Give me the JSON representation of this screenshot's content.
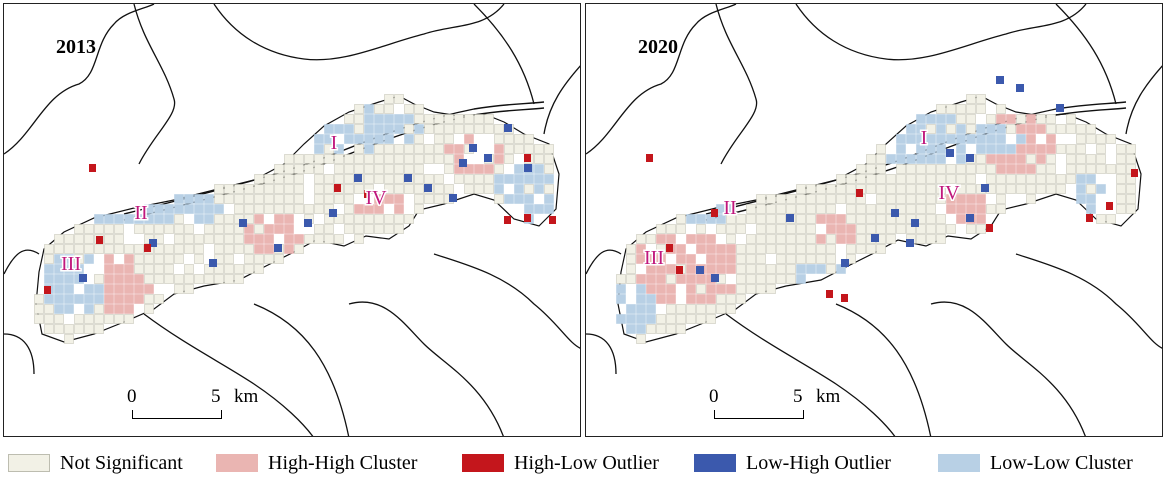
{
  "panels": [
    {
      "year": "2013",
      "regions": [
        "I",
        "II",
        "III",
        "IV"
      ]
    },
    {
      "year": "2020",
      "regions": [
        "I",
        "II",
        "III",
        "IV"
      ]
    }
  ],
  "scale_bar": {
    "start": "0",
    "end": "5",
    "unit": "km"
  },
  "legend": [
    {
      "label": "Not Significant",
      "color": "#f2f1e6",
      "border": "#bdbdb0"
    },
    {
      "label": "High-High Cluster",
      "color": "#eab5b2",
      "border": "#eab5b2"
    },
    {
      "label": "High-Low Outlier",
      "color": "#c4161c",
      "border": "#c4161c"
    },
    {
      "label": "Low-High Outlier",
      "color": "#3b59ad",
      "border": "#3b59ad"
    },
    {
      "label": "Low-Low Cluster",
      "color": "#b8d0e5",
      "border": "#b8d0e5"
    }
  ],
  "region_label_color": "#c0187d"
}
